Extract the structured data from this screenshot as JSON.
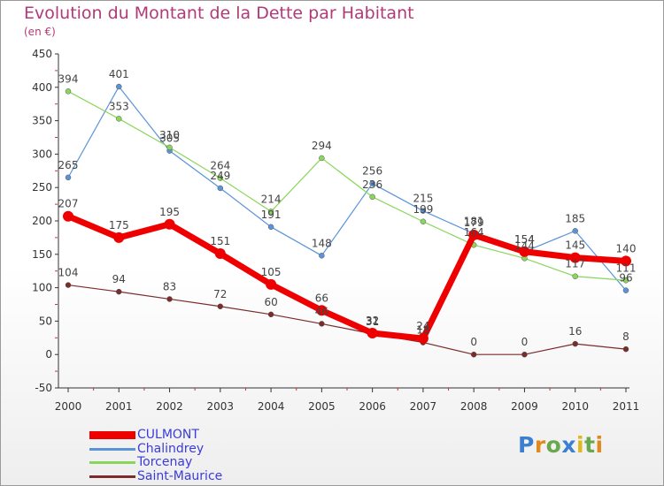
{
  "header": {
    "title": "Evolution du Montant de la Dette par Habitant",
    "unit": "(en €)"
  },
  "logo": {
    "letters": [
      {
        "ch": "P",
        "color": "#3a7fd0"
      },
      {
        "ch": "r",
        "color": "#e08a1e"
      },
      {
        "ch": "o",
        "color": "#6aa84f"
      },
      {
        "ch": "x",
        "color": "#3a7fd0"
      },
      {
        "ch": "i",
        "color": "#e0b81e"
      },
      {
        "ch": "t",
        "color": "#6aa84f"
      },
      {
        "ch": "i",
        "color": "#e08a1e"
      }
    ]
  },
  "chart_data": {
    "type": "line",
    "title": "Evolution du Montant de la Dette par Habitant",
    "subtitle": "(en €)",
    "x": [
      "2000",
      "2001",
      "2002",
      "2003",
      "2004",
      "2005",
      "2006",
      "2007",
      "2008",
      "2009",
      "2010",
      "2011"
    ],
    "ylim": [
      -50,
      450
    ],
    "yticks": [
      -50,
      0,
      50,
      100,
      150,
      200,
      250,
      300,
      350,
      400,
      450
    ],
    "grid": false,
    "legend_position": "bottom-left",
    "series": [
      {
        "name": "Chalindrey",
        "color": "#5b93d8",
        "width": 1.2,
        "marker": 3,
        "values": [
          265,
          401,
          305,
          249,
          191,
          148,
          256,
          215,
          181,
          154,
          185,
          96
        ],
        "labels": [
          "265",
          "401",
          "305",
          "249",
          "191",
          "148",
          "256",
          "215",
          "181",
          "154",
          "185",
          "96"
        ]
      },
      {
        "name": "Torcenay",
        "color": "#8ad65a",
        "width": 1.2,
        "marker": 3,
        "values": [
          394,
          353,
          310,
          264,
          214,
          294,
          236,
          199,
          164,
          144,
          117,
          111
        ],
        "labels": [
          "394",
          "353",
          "310",
          "264",
          "214",
          "294",
          "236",
          "199",
          "164",
          "144",
          "117",
          "111"
        ]
      },
      {
        "name": "Saint-Maurice",
        "color": "#7a2b2b",
        "width": 1.2,
        "marker": 3,
        "values": [
          104,
          94,
          83,
          72,
          60,
          46,
          31,
          18,
          0,
          0,
          16,
          8
        ],
        "labels": [
          "104",
          "94",
          "83",
          "72",
          "60",
          "46",
          "31",
          "18",
          "0",
          "0",
          "16",
          "8"
        ]
      },
      {
        "name": "CULMONT",
        "color": "#ee0000",
        "width": 7,
        "marker": 6,
        "values": [
          207,
          175,
          195,
          151,
          105,
          66,
          32,
          24,
          179,
          154,
          145,
          140
        ],
        "labels": [
          "207",
          "175",
          "195",
          "151",
          "105",
          "66",
          "32",
          "24",
          "179",
          "154",
          "145",
          "140"
        ]
      }
    ],
    "legend_order": [
      "CULMONT",
      "Chalindrey",
      "Torcenay",
      "Saint-Maurice"
    ]
  }
}
